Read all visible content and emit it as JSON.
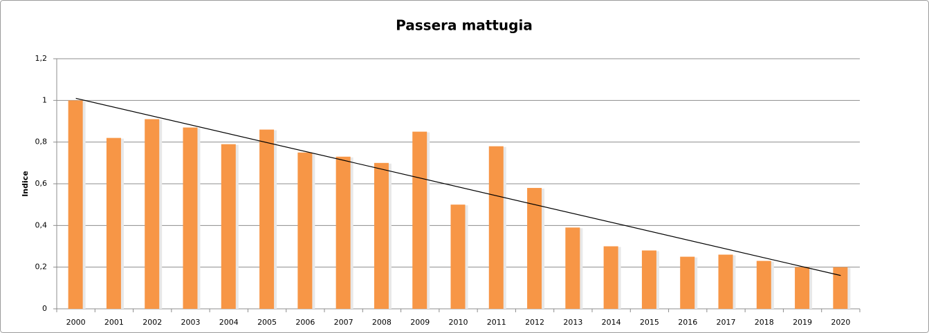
{
  "chart_data": {
    "type": "bar",
    "title": "Passera mattugia",
    "y_label": "Indice",
    "categories": [
      "2000",
      "2001",
      "2002",
      "2003",
      "2004",
      "2005",
      "2006",
      "2007",
      "2008",
      "2009",
      "2010",
      "2011",
      "2012",
      "2013",
      "2014",
      "2015",
      "2016",
      "2017",
      "2018",
      "2019",
      "2020"
    ],
    "values": [
      1.0,
      0.82,
      0.91,
      0.87,
      0.79,
      0.86,
      0.75,
      0.73,
      0.7,
      0.85,
      0.5,
      0.78,
      0.58,
      0.39,
      0.3,
      0.28,
      0.25,
      0.26,
      0.23,
      0.2,
      0.2
    ],
    "color": "#f79646",
    "trendline": [
      1.01,
      0.16
    ],
    "trendline_color": "#000000",
    "ylim": [
      0,
      1.2
    ],
    "yticks": [
      0,
      {
        "value": 0.2,
        "label": "0,2"
      },
      {
        "value": 0.4,
        "label": "0,4"
      },
      {
        "value": 0.6,
        "label": "0,6"
      },
      {
        "value": 0.8,
        "label": "0,8"
      },
      1,
      {
        "value": 1.2,
        "label": "1,2"
      }
    ],
    "grid": true
  }
}
